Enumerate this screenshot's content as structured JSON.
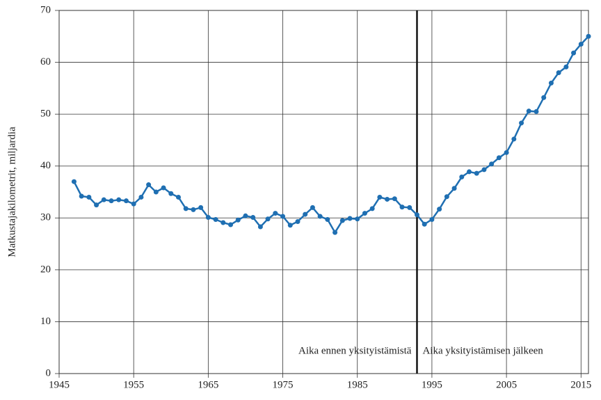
{
  "chart_data": {
    "type": "line",
    "y_label": "Matkustajakilometrit, miljardia",
    "annotations": [
      "Aika ennen yksityistämistä",
      "Aika yksityistämisen jälkeen"
    ],
    "divider_x": 1993,
    "x": [
      1947,
      1948,
      1949,
      1950,
      1951,
      1952,
      1953,
      1954,
      1955,
      1956,
      1957,
      1958,
      1959,
      1960,
      1961,
      1962,
      1963,
      1964,
      1965,
      1966,
      1967,
      1968,
      1969,
      1970,
      1971,
      1972,
      1973,
      1974,
      1975,
      1976,
      1977,
      1978,
      1979,
      1980,
      1981,
      1982,
      1983,
      1984,
      1985,
      1986,
      1987,
      1988,
      1989,
      1990,
      1991,
      1992,
      1993,
      1994,
      1995,
      1996,
      1997,
      1998,
      1999,
      2000,
      2001,
      2002,
      2003,
      2004,
      2005,
      2006,
      2007,
      2008,
      2009,
      2010,
      2011,
      2012,
      2013,
      2014,
      2015,
      2016
    ],
    "series": [
      {
        "color": "#1f6fb2",
        "values": [
          37.0,
          34.2,
          34.0,
          32.5,
          33.5,
          33.3,
          33.5,
          33.3,
          32.7,
          34.0,
          36.4,
          35.0,
          35.8,
          34.7,
          34.0,
          31.8,
          31.6,
          32.0,
          30.1,
          29.7,
          29.1,
          28.7,
          29.6,
          30.4,
          30.1,
          28.3,
          29.8,
          30.9,
          30.3,
          28.6,
          29.3,
          30.7,
          32.0,
          30.3,
          29.7,
          27.2,
          29.5,
          29.9,
          29.8,
          30.9,
          31.8,
          34.0,
          33.6,
          33.7,
          32.1,
          32.0,
          30.6,
          28.8,
          29.7,
          31.7,
          34.1,
          35.7,
          37.9,
          38.9,
          38.6,
          39.3,
          40.4,
          41.6,
          42.6,
          45.2,
          48.3,
          50.6,
          50.5,
          53.2,
          56.0,
          58.0,
          59.1,
          61.8,
          63.5,
          65.0
        ]
      }
    ],
    "xlim": [
      1945,
      2016
    ],
    "xticks": [
      1945,
      1955,
      1965,
      1975,
      1985,
      1995,
      2005,
      2015
    ],
    "ylim": [
      0,
      70
    ],
    "yticks": [
      0,
      10,
      20,
      30,
      40,
      50,
      60,
      70
    ],
    "grid": true
  }
}
